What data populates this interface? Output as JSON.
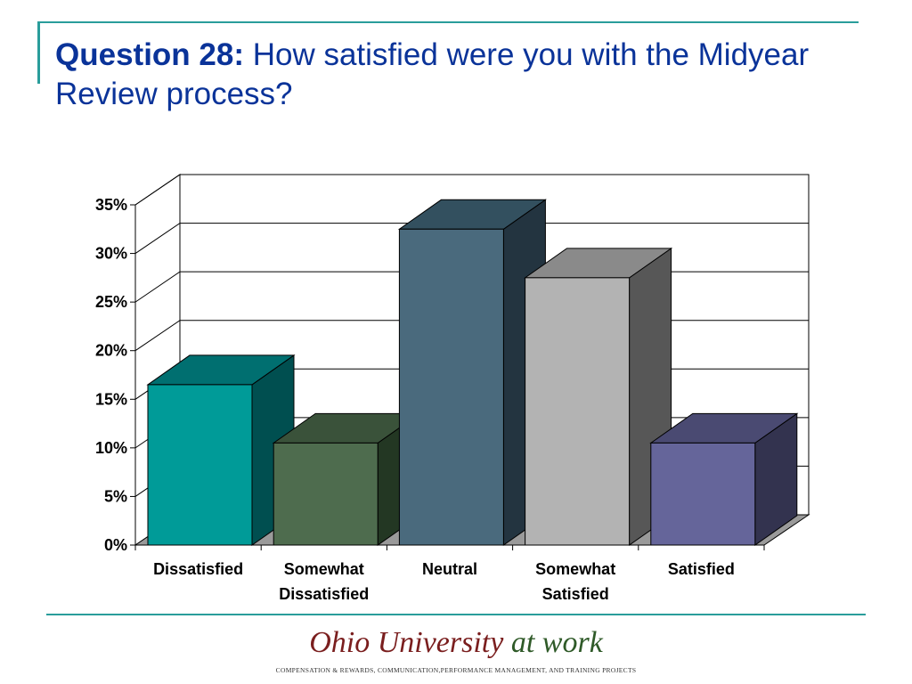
{
  "slide": {
    "title_lead": "Question 28:",
    "title_rest": " How satisfied were you with the Midyear Review process?"
  },
  "chart_data": {
    "type": "bar",
    "style": "3d-column",
    "categories": [
      "Dissatisfied",
      "Somewhat Dissatisfied",
      "Neutral",
      "Somewhat Satisfied",
      "Satisfied"
    ],
    "category_label_lines": [
      [
        "Dissatisfied"
      ],
      [
        "Somewhat",
        "Dissatisfied"
      ],
      [
        "Neutral"
      ],
      [
        "Somewhat",
        "Satisfied"
      ],
      [
        "Satisfied"
      ]
    ],
    "values": [
      16.5,
      10.5,
      32.5,
      27.5,
      10.5
    ],
    "value_unit": "%",
    "ylim": [
      0,
      35
    ],
    "y_ticks": [
      0,
      5,
      10,
      15,
      20,
      25,
      30,
      35
    ],
    "y_tick_labels": [
      "0%",
      "5%",
      "10%",
      "15%",
      "20%",
      "25%",
      "30%",
      "35%"
    ],
    "grid": true,
    "legend": "none",
    "title": "",
    "xlabel": "",
    "ylabel": "",
    "colors": [
      {
        "front": "#009b98",
        "side": "#004f50",
        "top": "#006f70"
      },
      {
        "front": "#4e6c4e",
        "side": "#233723",
        "top": "#3a523a"
      },
      {
        "front": "#4a6a7d",
        "side": "#233440",
        "top": "#33505f"
      },
      {
        "front": "#b3b3b3",
        "side": "#575757",
        "top": "#8a8a8a"
      },
      {
        "front": "#65659a",
        "side": "#33334f",
        "top": "#4a4a72"
      }
    ]
  },
  "footer": {
    "logo_main": "Ohio University",
    "logo_tail": " at work",
    "tagline": "COMPENSATION & REWARDS, COMMUNICATION,PERFORMANCE MANAGEMENT, AND TRAINING PROJECTS"
  }
}
